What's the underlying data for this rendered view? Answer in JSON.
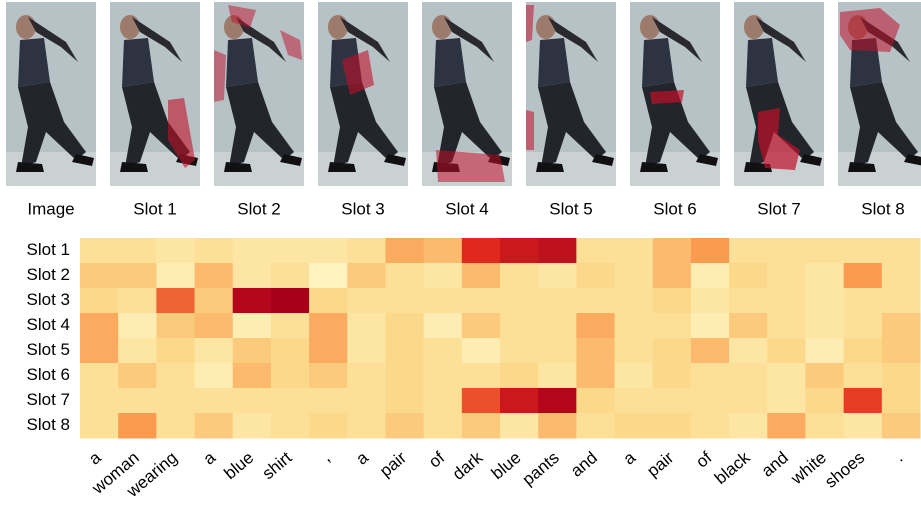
{
  "image_panels": {
    "labels": [
      "Image",
      "Slot 1",
      "Slot 2",
      "Slot 3",
      "Slot 4",
      "Slot 5",
      "Slot 6",
      "Slot 7",
      "Slot 8"
    ]
  },
  "chart_data": {
    "type": "heatmap",
    "categories": [
      "a",
      "woman",
      "wearing",
      "a",
      "blue",
      "shirt",
      ",",
      "a",
      "pair",
      "of",
      "dark",
      "blue",
      "pants",
      "and",
      "a",
      "pair",
      "of",
      "black",
      "and",
      "white",
      "shoes",
      "."
    ],
    "y_categories": [
      "Slot 1",
      "Slot 2",
      "Slot 3",
      "Slot 4",
      "Slot 5",
      "Slot 6",
      "Slot 7",
      "Slot 8"
    ],
    "values": [
      [
        0.2,
        0.2,
        0.15,
        0.2,
        0.15,
        0.15,
        0.15,
        0.2,
        0.4,
        0.35,
        0.75,
        0.85,
        0.9,
        0.2,
        0.2,
        0.35,
        0.45,
        0.2,
        0.2,
        0.2,
        0.2,
        0.2
      ],
      [
        0.3,
        0.3,
        0.1,
        0.35,
        0.15,
        0.2,
        0.05,
        0.3,
        0.2,
        0.15,
        0.35,
        0.2,
        0.15,
        0.25,
        0.2,
        0.35,
        0.1,
        0.25,
        0.2,
        0.15,
        0.45,
        0.2
      ],
      [
        0.25,
        0.2,
        0.6,
        0.3,
        0.95,
        1.0,
        0.25,
        0.2,
        0.2,
        0.2,
        0.2,
        0.2,
        0.2,
        0.2,
        0.2,
        0.25,
        0.15,
        0.2,
        0.2,
        0.15,
        0.2,
        0.2
      ],
      [
        0.4,
        0.1,
        0.3,
        0.35,
        0.1,
        0.2,
        0.4,
        0.15,
        0.25,
        0.1,
        0.3,
        0.2,
        0.2,
        0.4,
        0.2,
        0.2,
        0.1,
        0.3,
        0.2,
        0.15,
        0.2,
        0.3
      ],
      [
        0.4,
        0.15,
        0.25,
        0.15,
        0.3,
        0.25,
        0.4,
        0.15,
        0.25,
        0.2,
        0.1,
        0.2,
        0.2,
        0.35,
        0.2,
        0.25,
        0.35,
        0.15,
        0.25,
        0.1,
        0.25,
        0.3
      ],
      [
        0.2,
        0.3,
        0.2,
        0.1,
        0.35,
        0.25,
        0.3,
        0.2,
        0.25,
        0.2,
        0.2,
        0.25,
        0.15,
        0.35,
        0.15,
        0.25,
        0.2,
        0.2,
        0.15,
        0.3,
        0.2,
        0.25
      ],
      [
        0.2,
        0.2,
        0.2,
        0.2,
        0.2,
        0.2,
        0.2,
        0.2,
        0.25,
        0.2,
        0.65,
        0.85,
        0.95,
        0.25,
        0.2,
        0.2,
        0.2,
        0.2,
        0.15,
        0.25,
        0.7,
        0.25
      ],
      [
        0.2,
        0.45,
        0.2,
        0.3,
        0.15,
        0.2,
        0.25,
        0.2,
        0.3,
        0.2,
        0.3,
        0.15,
        0.35,
        0.2,
        0.25,
        0.25,
        0.2,
        0.15,
        0.4,
        0.2,
        0.15,
        0.3
      ]
    ],
    "zlim": [
      0,
      1
    ],
    "colormap": [
      "#fffacc",
      "#fcd98a",
      "#f98c42",
      "#e0281e",
      "#a8001c"
    ]
  }
}
